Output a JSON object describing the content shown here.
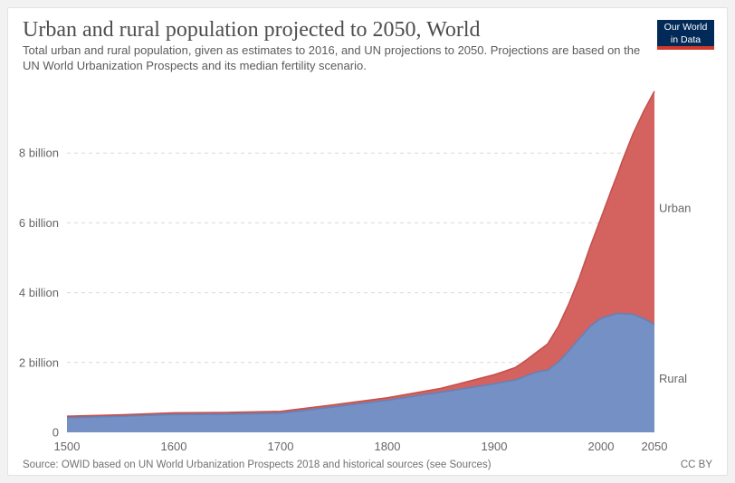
{
  "header": {
    "title": "Urban and rural population projected to 2050, World",
    "subtitle_line1": "Total urban and rural population, given as estimates to 2016, and UN projections to 2050. Projections are based on the",
    "subtitle_line2": "UN World Urbanization Prospects and its median fertility scenario."
  },
  "logo": {
    "line1": "Our World",
    "line2": "in Data",
    "bg_color": "#022a58",
    "bar_color": "#d1392c"
  },
  "footer": {
    "source": "Source: OWID based on UN World Urbanization Prospects 2018 and historical sources (see Sources)",
    "license": "CC BY"
  },
  "colors": {
    "urban_fill": "#d4635f",
    "urban_stroke": "#c5504c",
    "urban_label": "#cd4d4d",
    "rural_fill": "#7490c4",
    "rural_stroke": "#6282bb",
    "rural_label": "#4d6fb0",
    "gridline": "#d9d9d9",
    "axis_text": "#666666"
  },
  "chart_data": {
    "type": "area",
    "stacked": true,
    "title": "Urban and rural population projected to 2050, World",
    "unit": "billion people",
    "grid": "dashed-horizontal",
    "legend_position": "right-edge-labels",
    "xlim": [
      1500,
      2050
    ],
    "ylim": [
      0,
      10.1
    ],
    "x_ticks": [
      1500,
      1600,
      1700,
      1800,
      1900,
      2000,
      2050
    ],
    "y_ticks": [
      {
        "value": 0,
        "label": "0"
      },
      {
        "value": 2,
        "label": "2 billion"
      },
      {
        "value": 4,
        "label": "4 billion"
      },
      {
        "value": 6,
        "label": "6 billion"
      },
      {
        "value": 8,
        "label": "8 billion"
      }
    ],
    "x": [
      1500,
      1550,
      1600,
      1650,
      1700,
      1750,
      1800,
      1850,
      1900,
      1910,
      1920,
      1930,
      1940,
      1950,
      1960,
      1970,
      1980,
      1990,
      2000,
      2010,
      2016,
      2020,
      2030,
      2040,
      2050
    ],
    "series": [
      {
        "name": "Rural",
        "fill": "#7490c4",
        "stroke": "#6282bb",
        "label_color": "#4d6fb0",
        "values": [
          0.42,
          0.46,
          0.51,
          0.52,
          0.55,
          0.73,
          0.92,
          1.15,
          1.39,
          1.45,
          1.5,
          1.62,
          1.73,
          1.78,
          2.01,
          2.34,
          2.7,
          3.04,
          3.27,
          3.36,
          3.41,
          3.4,
          3.38,
          3.26,
          3.09
        ]
      },
      {
        "name": "Urban",
        "fill": "#d4635f",
        "stroke": "#c5504c",
        "label_color": "#cd4d4d",
        "values": [
          0.04,
          0.04,
          0.05,
          0.05,
          0.05,
          0.06,
          0.07,
          0.11,
          0.26,
          0.3,
          0.36,
          0.45,
          0.57,
          0.75,
          1.02,
          1.35,
          1.75,
          2.29,
          2.87,
          3.6,
          4.03,
          4.38,
          5.17,
          5.94,
          6.68
        ]
      }
    ]
  }
}
